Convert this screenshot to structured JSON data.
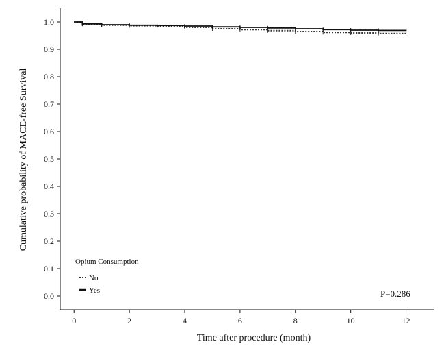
{
  "chart_data": {
    "type": "line",
    "title": "",
    "xlabel": "Time after procedure (month)",
    "ylabel": "Cumulative probability of MACE-free Survival",
    "xlim": [
      -0.5,
      13
    ],
    "ylim": [
      -0.05,
      1.05
    ],
    "x_ticks": [
      0,
      2,
      4,
      6,
      8,
      10,
      12
    ],
    "y_ticks": [
      0.0,
      0.1,
      0.2,
      0.3,
      0.4,
      0.5,
      0.6,
      0.7,
      0.8,
      0.9,
      1.0
    ],
    "x_tick_labels": [
      "0",
      "2",
      "4",
      "6",
      "8",
      "10",
      "12"
    ],
    "y_tick_labels": [
      "0.0",
      "0.1",
      "0.2",
      "0.3",
      "0.4",
      "0.5",
      "0.6",
      "0.7",
      "0.8",
      "0.9",
      "1.0"
    ],
    "grid": false,
    "legend_title": "Opium Consumption",
    "legend_placement": "bottom-left",
    "annotation": "P=0.286",
    "series": [
      {
        "name": "No",
        "style": "dotted",
        "color": "#333333",
        "x": [
          0,
          0.3,
          1,
          2,
          3,
          4,
          5,
          6,
          7,
          8,
          9,
          10,
          11,
          12
        ],
        "y": [
          1.0,
          0.992,
          0.988,
          0.986,
          0.984,
          0.98,
          0.975,
          0.972,
          0.968,
          0.965,
          0.962,
          0.96,
          0.958,
          0.955
        ]
      },
      {
        "name": "Yes",
        "style": "solid",
        "color": "#111111",
        "x": [
          0,
          0.3,
          1,
          2,
          3,
          4,
          5,
          6,
          7,
          8,
          9,
          10,
          11,
          12
        ],
        "y": [
          1.0,
          0.993,
          0.99,
          0.988,
          0.987,
          0.985,
          0.982,
          0.98,
          0.978,
          0.975,
          0.972,
          0.97,
          0.969,
          0.968
        ]
      }
    ]
  }
}
